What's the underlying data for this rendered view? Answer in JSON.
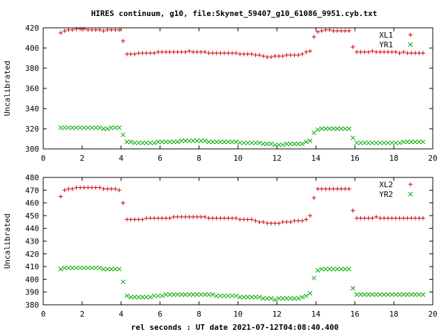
{
  "title": "HIRES continuum, g10, file:Skynet_59407_g10_61086_9951.cyb.txt",
  "xlabel": "rel seconds : UT date 2021-07-12T04:08:40.400",
  "chart_data": [
    {
      "type": "scatter",
      "ylabel": "Uncalibrated",
      "xlim": [
        0,
        20
      ],
      "ylim": [
        300,
        420
      ],
      "xticks": [
        0,
        2,
        4,
        6,
        8,
        10,
        12,
        14,
        16,
        18,
        20
      ],
      "yticks": [
        300,
        320,
        340,
        360,
        380,
        400,
        420
      ],
      "grid": false,
      "legend": "top-right",
      "series": [
        {
          "name": "XL1",
          "marker": "+",
          "color": "#cc0000",
          "x": [
            0.9,
            1.1,
            1.3,
            1.5,
            1.7,
            1.9,
            2.1,
            2.3,
            2.5,
            2.7,
            2.9,
            3.1,
            3.3,
            3.5,
            3.7,
            3.9,
            4.1,
            4.3,
            4.5,
            4.7,
            4.9,
            5.1,
            5.3,
            5.5,
            5.7,
            5.9,
            6.1,
            6.3,
            6.5,
            6.7,
            6.9,
            7.1,
            7.3,
            7.5,
            7.7,
            7.9,
            8.1,
            8.3,
            8.5,
            8.7,
            8.9,
            9.1,
            9.3,
            9.5,
            9.7,
            9.9,
            10.1,
            10.3,
            10.5,
            10.7,
            10.9,
            11.1,
            11.3,
            11.5,
            11.7,
            11.9,
            12.1,
            12.3,
            12.5,
            12.7,
            12.9,
            13.1,
            13.3,
            13.5,
            13.7,
            13.9,
            14.1,
            14.3,
            14.5,
            14.7,
            14.9,
            15.1,
            15.3,
            15.5,
            15.7,
            15.9,
            16.1,
            16.3,
            16.5,
            16.7,
            16.9,
            17.1,
            17.3,
            17.5,
            17.7,
            17.9,
            18.1,
            18.3,
            18.5,
            18.7,
            18.9,
            19.1,
            19.3,
            19.5
          ],
          "y": [
            415,
            417,
            418,
            418,
            419,
            419,
            419,
            418,
            418,
            418,
            418,
            417,
            418,
            418,
            418,
            418,
            407,
            394,
            394,
            394,
            395,
            395,
            395,
            395,
            395,
            396,
            396,
            396,
            396,
            396,
            396,
            396,
            396,
            397,
            396,
            396,
            396,
            396,
            395,
            395,
            395,
            395,
            395,
            395,
            395,
            395,
            394,
            394,
            394,
            394,
            393,
            393,
            392,
            391,
            391,
            392,
            392,
            392,
            393,
            393,
            393,
            393,
            394,
            396,
            397,
            411,
            416,
            417,
            418,
            418,
            417,
            417,
            417,
            417,
            417,
            401,
            396,
            396,
            396,
            396,
            397,
            396,
            396,
            396,
            396,
            396,
            396,
            395,
            396,
            395,
            395,
            395,
            395,
            395
          ]
        },
        {
          "name": "YR1",
          "marker": "x",
          "color": "#00aa00",
          "x": [
            0.9,
            1.1,
            1.3,
            1.5,
            1.7,
            1.9,
            2.1,
            2.3,
            2.5,
            2.7,
            2.9,
            3.1,
            3.3,
            3.5,
            3.7,
            3.9,
            4.1,
            4.3,
            4.5,
            4.7,
            4.9,
            5.1,
            5.3,
            5.5,
            5.7,
            5.9,
            6.1,
            6.3,
            6.5,
            6.7,
            6.9,
            7.1,
            7.3,
            7.5,
            7.7,
            7.9,
            8.1,
            8.3,
            8.5,
            8.7,
            8.9,
            9.1,
            9.3,
            9.5,
            9.7,
            9.9,
            10.1,
            10.3,
            10.5,
            10.7,
            10.9,
            11.1,
            11.3,
            11.5,
            11.7,
            11.9,
            12.1,
            12.3,
            12.5,
            12.7,
            12.9,
            13.1,
            13.3,
            13.5,
            13.7,
            13.9,
            14.1,
            14.3,
            14.5,
            14.7,
            14.9,
            15.1,
            15.3,
            15.5,
            15.7,
            15.9,
            16.1,
            16.3,
            16.5,
            16.7,
            16.9,
            17.1,
            17.3,
            17.5,
            17.7,
            17.9,
            18.1,
            18.3,
            18.5,
            18.7,
            18.9,
            19.1,
            19.3,
            19.5
          ],
          "y": [
            321,
            321,
            321,
            321,
            321,
            321,
            321,
            321,
            321,
            321,
            321,
            320,
            320,
            321,
            321,
            321,
            314,
            307,
            307,
            306,
            306,
            306,
            306,
            306,
            306,
            307,
            307,
            307,
            307,
            307,
            307,
            308,
            308,
            308,
            308,
            308,
            308,
            308,
            307,
            307,
            307,
            307,
            307,
            307,
            307,
            307,
            306,
            306,
            306,
            306,
            306,
            306,
            305,
            305,
            305,
            304,
            304,
            304,
            305,
            305,
            305,
            305,
            305,
            307,
            308,
            316,
            319,
            320,
            320,
            320,
            320,
            320,
            320,
            320,
            320,
            311,
            306,
            306,
            306,
            306,
            306,
            306,
            306,
            306,
            306,
            306,
            306,
            306,
            307,
            307,
            307,
            307,
            307,
            307
          ]
        }
      ]
    },
    {
      "type": "scatter",
      "ylabel": "Uncalibrated",
      "xlim": [
        0,
        20
      ],
      "ylim": [
        380,
        480
      ],
      "xticks": [
        0,
        2,
        4,
        6,
        8,
        10,
        12,
        14,
        16,
        18,
        20
      ],
      "yticks": [
        380,
        390,
        400,
        410,
        420,
        430,
        440,
        450,
        460,
        470,
        480
      ],
      "grid": false,
      "legend": "top-right",
      "series": [
        {
          "name": "XL2",
          "marker": "+",
          "color": "#cc0000",
          "x": [
            0.9,
            1.1,
            1.3,
            1.5,
            1.7,
            1.9,
            2.1,
            2.3,
            2.5,
            2.7,
            2.9,
            3.1,
            3.3,
            3.5,
            3.7,
            3.9,
            4.1,
            4.3,
            4.5,
            4.7,
            4.9,
            5.1,
            5.3,
            5.5,
            5.7,
            5.9,
            6.1,
            6.3,
            6.5,
            6.7,
            6.9,
            7.1,
            7.3,
            7.5,
            7.7,
            7.9,
            8.1,
            8.3,
            8.5,
            8.7,
            8.9,
            9.1,
            9.3,
            9.5,
            9.7,
            9.9,
            10.1,
            10.3,
            10.5,
            10.7,
            10.9,
            11.1,
            11.3,
            11.5,
            11.7,
            11.9,
            12.1,
            12.3,
            12.5,
            12.7,
            12.9,
            13.1,
            13.3,
            13.5,
            13.7,
            13.9,
            14.1,
            14.3,
            14.5,
            14.7,
            14.9,
            15.1,
            15.3,
            15.5,
            15.7,
            15.9,
            16.1,
            16.3,
            16.5,
            16.7,
            16.9,
            17.1,
            17.3,
            17.5,
            17.7,
            17.9,
            18.1,
            18.3,
            18.5,
            18.7,
            18.9,
            19.1,
            19.3,
            19.5
          ],
          "y": [
            465,
            470,
            471,
            471,
            472,
            472,
            472,
            472,
            472,
            472,
            472,
            471,
            471,
            471,
            471,
            470,
            460,
            447,
            447,
            447,
            447,
            447,
            448,
            448,
            448,
            448,
            448,
            448,
            448,
            449,
            449,
            449,
            449,
            449,
            449,
            449,
            449,
            449,
            448,
            448,
            448,
            448,
            448,
            448,
            448,
            448,
            447,
            447,
            447,
            447,
            446,
            445,
            445,
            444,
            444,
            444,
            444,
            445,
            445,
            445,
            446,
            446,
            446,
            447,
            450,
            464,
            471,
            471,
            471,
            471,
            471,
            471,
            471,
            471,
            471,
            454,
            448,
            448,
            448,
            448,
            448,
            449,
            448,
            448,
            448,
            448,
            448,
            448,
            448,
            448,
            448,
            448,
            448,
            448
          ]
        },
        {
          "name": "YR2",
          "marker": "x",
          "color": "#00aa00",
          "x": [
            0.9,
            1.1,
            1.3,
            1.5,
            1.7,
            1.9,
            2.1,
            2.3,
            2.5,
            2.7,
            2.9,
            3.1,
            3.3,
            3.5,
            3.7,
            3.9,
            4.1,
            4.3,
            4.5,
            4.7,
            4.9,
            5.1,
            5.3,
            5.5,
            5.7,
            5.9,
            6.1,
            6.3,
            6.5,
            6.7,
            6.9,
            7.1,
            7.3,
            7.5,
            7.7,
            7.9,
            8.1,
            8.3,
            8.5,
            8.7,
            8.9,
            9.1,
            9.3,
            9.5,
            9.7,
            9.9,
            10.1,
            10.3,
            10.5,
            10.7,
            10.9,
            11.1,
            11.3,
            11.5,
            11.7,
            11.9,
            12.1,
            12.3,
            12.5,
            12.7,
            12.9,
            13.1,
            13.3,
            13.5,
            13.7,
            13.9,
            14.1,
            14.3,
            14.5,
            14.7,
            14.9,
            15.1,
            15.3,
            15.5,
            15.7,
            15.9,
            16.1,
            16.3,
            16.5,
            16.7,
            16.9,
            17.1,
            17.3,
            17.5,
            17.7,
            17.9,
            18.1,
            18.3,
            18.5,
            18.7,
            18.9,
            19.1,
            19.3,
            19.5
          ],
          "y": [
            408,
            409,
            409,
            409,
            409,
            409,
            409,
            409,
            409,
            409,
            409,
            408,
            408,
            408,
            408,
            408,
            398,
            387,
            386,
            386,
            386,
            386,
            386,
            386,
            387,
            387,
            387,
            388,
            388,
            388,
            388,
            388,
            388,
            388,
            388,
            388,
            388,
            388,
            388,
            388,
            387,
            387,
            387,
            387,
            387,
            387,
            386,
            386,
            386,
            386,
            386,
            386,
            385,
            385,
            385,
            384,
            385,
            385,
            385,
            385,
            385,
            385,
            386,
            387,
            389,
            401,
            407,
            408,
            408,
            408,
            408,
            408,
            408,
            408,
            408,
            393,
            388,
            388,
            388,
            388,
            388,
            388,
            388,
            388,
            388,
            388,
            388,
            388,
            388,
            388,
            388,
            388,
            388,
            388
          ]
        }
      ]
    }
  ]
}
